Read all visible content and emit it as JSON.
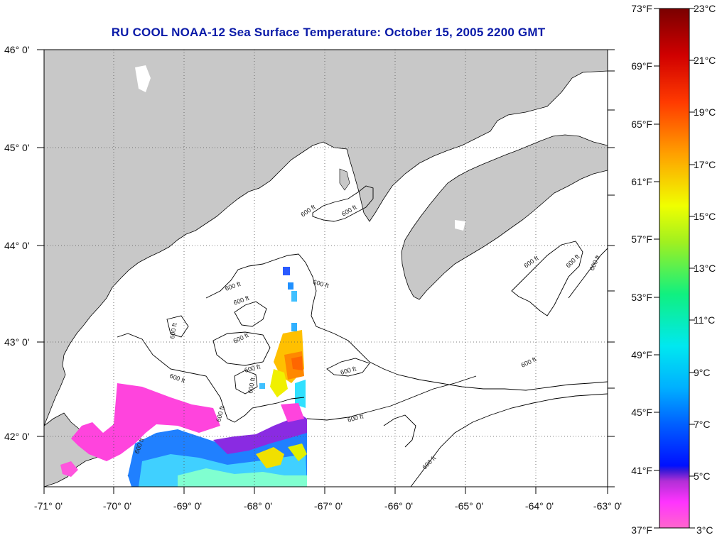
{
  "title": "RU COOL  NOAA-12  Sea Surface Temperature:  October 15, 2005 2200 GMT",
  "map": {
    "lon_range": [
      -71,
      -63
    ],
    "lat_range": [
      41.5,
      46.05
    ],
    "lon_ticks": [
      "-71° 0'",
      "-70° 0'",
      "-69° 0'",
      "-68° 0'",
      "-67° 0'",
      "-66° 0'",
      "-65° 0'",
      "-64° 0'",
      "-63° 0'"
    ],
    "lat_ticks": [
      "46° 0'",
      "45° 0'",
      "44° 0'",
      "43° 0'",
      "42° 0'"
    ],
    "contour_label": "600 ft",
    "land_color": "#c8c8c8",
    "ocean_color": "#ffffff"
  },
  "colorbar": {
    "f_labels": [
      "73°F",
      "69°F",
      "65°F",
      "61°F",
      "57°F",
      "53°F",
      "49°F",
      "45°F",
      "41°F",
      "37°F"
    ],
    "c_labels": [
      "23°C",
      "21°C",
      "19°C",
      "17°C",
      "15°C",
      "13°C",
      "11°C",
      "9°C",
      "7°C",
      "5°C",
      "3°C"
    ],
    "range_c": [
      3,
      23
    ]
  }
}
